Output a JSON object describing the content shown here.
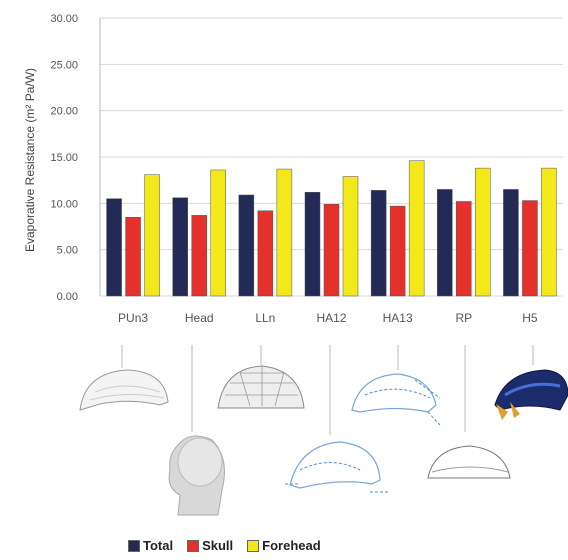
{
  "colors": {
    "total": "#232a55",
    "skull": "#e4312b",
    "forehead": "#f2e81a"
  },
  "chart_data": {
    "type": "bar",
    "title": "",
    "xlabel": "",
    "ylabel": "Evaporative Resistance (m² Pa/W)",
    "ylim": [
      0,
      30
    ],
    "yticks": [
      "0.00",
      "5.00",
      "10.00",
      "15.00",
      "20.00",
      "25.00",
      "30.00"
    ],
    "grid": true,
    "legend_position": "bottom",
    "categories": [
      "PUn3",
      "Head",
      "LLn",
      "HA12",
      "HA13",
      "RP",
      "H5"
    ],
    "series": [
      {
        "name": "Total",
        "values": [
          10.5,
          10.6,
          10.9,
          11.2,
          11.4,
          11.5,
          11.5
        ]
      },
      {
        "name": "Skull",
        "values": [
          8.5,
          8.7,
          9.2,
          9.9,
          9.7,
          10.2,
          10.3
        ]
      },
      {
        "name": "Forehead",
        "values": [
          13.1,
          13.6,
          13.7,
          12.9,
          14.6,
          13.8,
          13.8
        ]
      }
    ]
  },
  "illustrations": [
    "helmet-sketch",
    "mannequin-head",
    "perforated-helmet",
    "vented-helmet-airflow",
    "helmet-airflow",
    "plain-helmet-outline",
    "bicycle-helmet-photo"
  ]
}
